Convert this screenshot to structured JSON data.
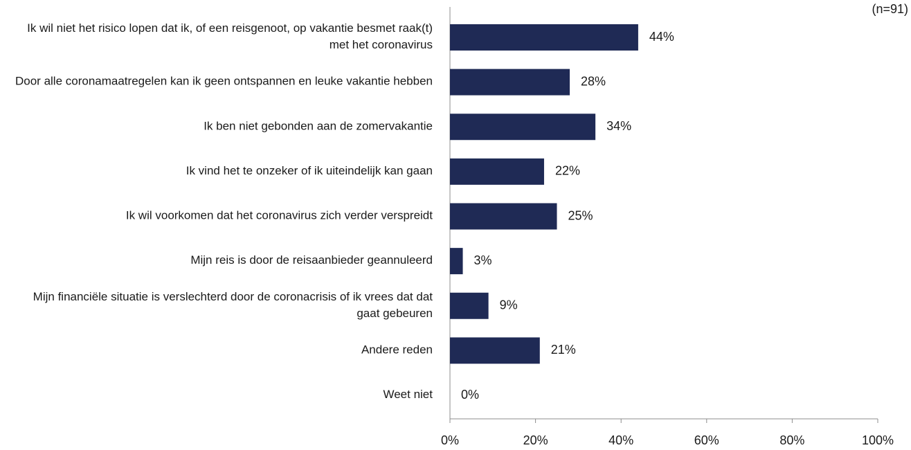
{
  "chart_data": {
    "type": "barh",
    "annotation": "(n=91)",
    "categories": [
      "Ik wil niet het risico lopen dat ik, of een reisgenoot, op vakantie besmet raak(t) met het coronavirus",
      "Door alle coronamaatregelen kan ik geen ontspannen en leuke vakantie hebben",
      "Ik ben niet gebonden aan de zomervakantie",
      "Ik vind het te onzeker of ik uiteindelijk kan gaan",
      "Ik wil voorkomen dat het coronavirus zich verder verspreidt",
      "Mijn reis is door de reisaanbieder geannuleerd",
      "Mijn financiële situatie is verslechterd door de coronacrisis of ik vrees dat dat gaat gebeuren",
      "Andere reden",
      "Weet niet"
    ],
    "values": [
      44,
      28,
      34,
      22,
      25,
      3,
      9,
      21,
      0
    ],
    "value_labels": [
      "44%",
      "28%",
      "34%",
      "22%",
      "25%",
      "3%",
      "9%",
      "21%",
      "0%"
    ],
    "color": "#1f2a55",
    "xlim": [
      0,
      100
    ],
    "xticks": [
      {
        "value": 0,
        "label": "0%"
      },
      {
        "value": 20,
        "label": "20%"
      },
      {
        "value": 40,
        "label": "40%"
      },
      {
        "value": 60,
        "label": "60%"
      },
      {
        "value": 80,
        "label": "80%"
      },
      {
        "value": 100,
        "label": "100%"
      }
    ],
    "grid": false
  }
}
